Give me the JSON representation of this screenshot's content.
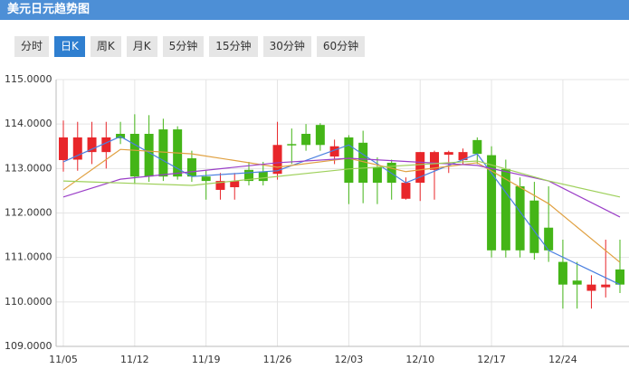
{
  "header": {
    "title": "美元日元趋势图"
  },
  "tabs": {
    "items": [
      "分时",
      "日K",
      "周K",
      "月K",
      "5分钟",
      "15分钟",
      "30分钟",
      "60分钟"
    ],
    "active": 1
  },
  "chart_data": {
    "type": "candlestick",
    "categories": [
      "11/05",
      null,
      null,
      null,
      null,
      "11/12",
      null,
      null,
      null,
      null,
      "11/19",
      null,
      null,
      null,
      null,
      "11/26",
      null,
      null,
      null,
      null,
      "12/03",
      null,
      null,
      null,
      null,
      "12/10",
      null,
      null,
      null,
      null,
      "12/17",
      null,
      null,
      null,
      null,
      "12/24",
      null,
      null,
      null,
      null
    ],
    "open": [
      113.19,
      113.2,
      113.37,
      113.37,
      113.78,
      113.78,
      113.78,
      113.88,
      113.88,
      113.23,
      112.82,
      112.52,
      112.58,
      112.97,
      112.93,
      112.88,
      113.55,
      113.78,
      113.98,
      113.27,
      113.7,
      113.58,
      113.03,
      113.13,
      112.32,
      112.68,
      112.97,
      113.31,
      113.19,
      113.64,
      113.3,
      112.99,
      112.6,
      112.28,
      111.67,
      110.9,
      110.48,
      110.25,
      110.33,
      110.73
    ],
    "high": [
      114.08,
      114.05,
      114.05,
      114.05,
      114.05,
      114.22,
      114.2,
      114.12,
      113.95,
      113.4,
      112.95,
      112.9,
      112.9,
      113.15,
      113.15,
      114.05,
      113.9,
      114.0,
      114.02,
      113.65,
      113.75,
      113.85,
      113.25,
      113.2,
      112.8,
      113.37,
      113.4,
      113.4,
      113.45,
      113.7,
      113.5,
      113.2,
      112.8,
      112.7,
      112.6,
      111.4,
      110.9,
      110.6,
      111.4,
      111.4
    ],
    "low": [
      112.93,
      112.95,
      113.1,
      113.0,
      113.55,
      112.65,
      112.7,
      112.72,
      112.75,
      112.7,
      112.3,
      112.3,
      112.3,
      112.62,
      112.62,
      112.75,
      113.1,
      113.4,
      113.4,
      113.1,
      112.2,
      112.22,
      112.2,
      112.3,
      112.3,
      112.27,
      112.3,
      112.9,
      113.1,
      113.1,
      111.0,
      111.0,
      111.0,
      110.95,
      110.9,
      109.85,
      109.85,
      109.85,
      110.1,
      110.2
    ],
    "close": [
      113.7,
      113.7,
      113.7,
      113.7,
      113.68,
      112.82,
      112.82,
      112.82,
      112.82,
      112.82,
      112.72,
      112.72,
      112.72,
      112.72,
      112.72,
      113.53,
      113.52,
      113.53,
      113.53,
      113.5,
      112.68,
      112.68,
      112.68,
      112.68,
      112.68,
      113.37,
      113.37,
      113.37,
      113.37,
      113.33,
      111.16,
      111.16,
      111.16,
      111.1,
      111.16,
      110.39,
      110.39,
      110.39,
      110.39,
      110.39
    ],
    "up_color": "#e8262a",
    "down_color": "#44b517",
    "series": [
      {
        "color": "#4a7fe0",
        "x": [
          0,
          4,
          9,
          15,
          20,
          24,
          29,
          34,
          39
        ],
        "values": [
          113.15,
          113.72,
          112.82,
          112.95,
          113.53,
          112.68,
          113.33,
          111.16,
          110.39
        ]
      },
      {
        "color": "#e0a040",
        "x": [
          0,
          4,
          9,
          15,
          20,
          24,
          29,
          34,
          39
        ],
        "values": [
          112.52,
          113.43,
          113.33,
          113.03,
          113.23,
          112.93,
          113.13,
          112.21,
          110.89
        ]
      },
      {
        "color": "#9b3fc8",
        "x": [
          0,
          4,
          15,
          20,
          29,
          34,
          39
        ],
        "values": [
          112.36,
          112.76,
          113.13,
          113.23,
          113.07,
          112.72,
          111.91
        ]
      },
      {
        "color": "#9ed05a",
        "x": [
          0,
          9,
          20,
          29,
          34,
          39
        ],
        "values": [
          112.72,
          112.62,
          112.99,
          113.17,
          112.72,
          112.36
        ]
      }
    ],
    "ylim": [
      109,
      115
    ],
    "yticks": [
      {
        "value": 109,
        "label": "109.0000"
      },
      {
        "value": 110,
        "label": "110.0000"
      },
      {
        "value": 111,
        "label": "111.0000"
      },
      {
        "value": 112,
        "label": "112.0000"
      },
      {
        "value": 113,
        "label": "113.0000"
      },
      {
        "value": 114,
        "label": "114.0000"
      },
      {
        "value": 115,
        "label": "115.0000"
      }
    ],
    "grid": true
  }
}
